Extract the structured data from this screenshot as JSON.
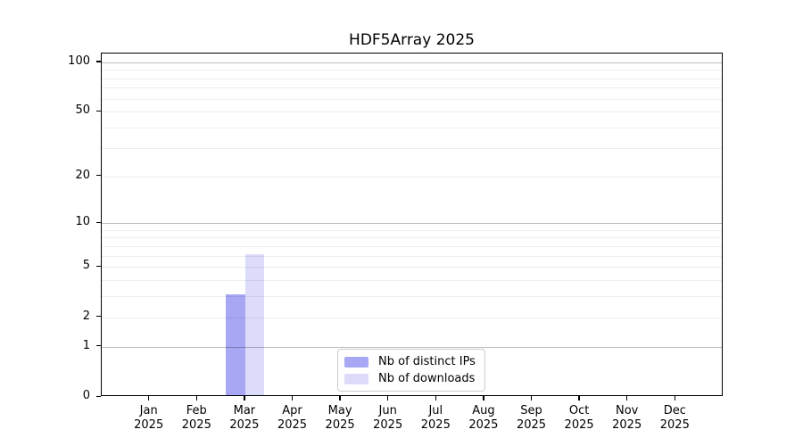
{
  "chart_data": {
    "type": "bar",
    "title": "HDF5Array 2025",
    "categories": [
      "Jan",
      "Feb",
      "Mar",
      "Apr",
      "May",
      "Jun",
      "Jul",
      "Aug",
      "Sep",
      "Oct",
      "Nov",
      "Dec"
    ],
    "category_year": "2025",
    "series": [
      {
        "name": "Nb of distinct IPs",
        "color": "#a7a7f4",
        "values": [
          0,
          0,
          3,
          0,
          0,
          0,
          0,
          0,
          0,
          0,
          0,
          0
        ]
      },
      {
        "name": "Nb of downloads",
        "color": "#dcdcfa",
        "values": [
          0,
          0,
          6,
          0,
          0,
          0,
          0,
          0,
          0,
          0,
          0,
          0
        ]
      }
    ],
    "yscale": "log1p",
    "ylim": [
      0,
      113
    ],
    "yticks_labeled": [
      0,
      1,
      2,
      5,
      10,
      20,
      50,
      100
    ],
    "grid_major_values": [
      1,
      10,
      100
    ],
    "grid_minor_values": [
      2,
      3,
      4,
      5,
      6,
      7,
      8,
      9,
      20,
      30,
      40,
      50,
      60,
      70,
      80,
      90
    ],
    "legend_position": "bottom-center",
    "axis_color": "#000000",
    "grid_major_color": "#c0c0c0",
    "grid_minor_color": "#ececec"
  }
}
